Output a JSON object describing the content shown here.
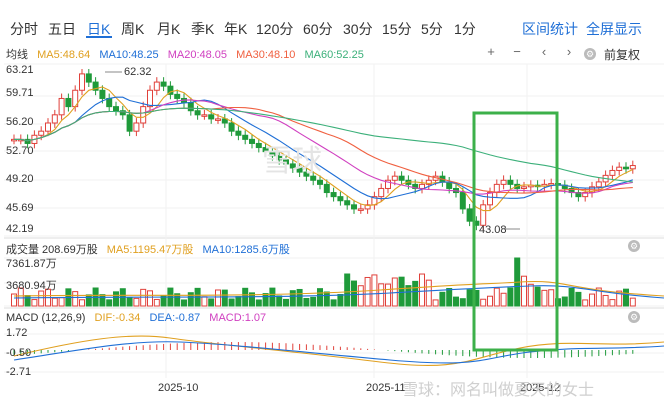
{
  "tabs": [
    "分时",
    "五日",
    "日K",
    "周K",
    "月K",
    "季K",
    "年K",
    "120分",
    "60分",
    "30分",
    "15分",
    "5分",
    "1分"
  ],
  "active_tab": "日K",
  "toolbar": {
    "range_stats": "区间统计",
    "fullscreen": "全屏显示"
  },
  "ma_legend": {
    "label": "均线",
    "ma5": "MA5:48.64",
    "ma10": "MA10:48.25",
    "ma20": "MA20:48.05",
    "ma30": "MA30:48.10",
    "ma60": "MA60:52.25"
  },
  "controls": {
    "plus": "+",
    "minus": "−",
    "left": "‹",
    "right": "›",
    "adjust": "前复权"
  },
  "price_axis": [
    "63.21",
    "59.71",
    "56.20",
    "52.70",
    "49.20",
    "45.69",
    "42.19"
  ],
  "annotations": {
    "high": "62.32",
    "low": "43.08"
  },
  "volume_legend": {
    "label": "成交量 208.69万股",
    "ma5": "MA5:1195.47万股",
    "ma10": "MA10:1285.6万股"
  },
  "volume_axis": [
    "7361.87万",
    "3680.94万"
  ],
  "macd_legend": {
    "label": "MACD (12,26,9)",
    "dif": "DIF:-0.34",
    "dea": "DEA:-0.87",
    "macd": "MACD:1.07"
  },
  "macd_axis": [
    "1.72",
    "-0.50",
    "-2.71"
  ],
  "date_axis": [
    "2025-10",
    "2025-11",
    "2025-12"
  ],
  "watermark": "雪球：网名叫做夏天的女士",
  "logo_watermark": "雪球",
  "colors": {
    "up": "#e0403a",
    "down": "#1f9a3a",
    "ma5": "#e0a020",
    "ma10": "#1f6fd6",
    "ma20": "#d040c0",
    "ma30": "#f06040",
    "ma60": "#3cb07a",
    "highlight": "#3cb04a",
    "accent": "#1f6fd6"
  }
}
